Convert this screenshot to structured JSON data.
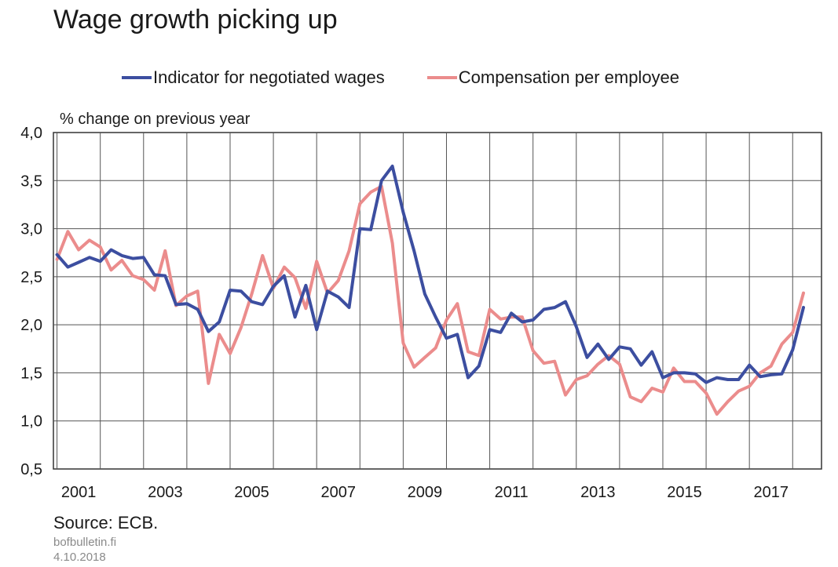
{
  "title": "Wage growth picking up",
  "source": "Source: ECB.",
  "site": "bofbulletin.fi",
  "date": "4.10.2018",
  "chart_data": {
    "type": "line",
    "title": "Wage growth picking up",
    "ylabel": "% change on previous year",
    "xlabel": "",
    "ylim": [
      0.5,
      4.0
    ],
    "yticks": [
      "0,5",
      "1,0",
      "1,5",
      "2,0",
      "2,5",
      "3,0",
      "3,5",
      "4,0"
    ],
    "ytick_values": [
      0.5,
      1.0,
      1.5,
      2.0,
      2.5,
      3.0,
      3.5,
      4.0
    ],
    "xticks": [
      "2001",
      "2003",
      "2005",
      "2007",
      "2009",
      "2011",
      "2013",
      "2015",
      "2017"
    ],
    "x_range": [
      "2000-12",
      "2018-09"
    ],
    "grid": true,
    "legend_position": "top",
    "series": [
      {
        "name": "Indicator for negotiated wages",
        "color": "#3c4ea0",
        "points": [
          [
            "2001-01",
            2.73
          ],
          [
            "2001-04",
            2.6
          ],
          [
            "2001-07",
            2.65
          ],
          [
            "2001-10",
            2.7
          ],
          [
            "2002-01",
            2.66
          ],
          [
            "2002-04",
            2.78
          ],
          [
            "2002-07",
            2.72
          ],
          [
            "2002-10",
            2.69
          ],
          [
            "2003-01",
            2.7
          ],
          [
            "2003-04",
            2.52
          ],
          [
            "2003-07",
            2.51
          ],
          [
            "2003-10",
            2.21
          ],
          [
            "2004-01",
            2.22
          ],
          [
            "2004-04",
            2.16
          ],
          [
            "2004-07",
            1.93
          ],
          [
            "2004-10",
            2.03
          ],
          [
            "2005-01",
            2.36
          ],
          [
            "2005-04",
            2.35
          ],
          [
            "2005-07",
            2.24
          ],
          [
            "2005-10",
            2.21
          ],
          [
            "2006-01",
            2.4
          ],
          [
            "2006-04",
            2.51
          ],
          [
            "2006-07",
            2.08
          ],
          [
            "2006-10",
            2.41
          ],
          [
            "2007-01",
            1.95
          ],
          [
            "2007-04",
            2.35
          ],
          [
            "2007-07",
            2.29
          ],
          [
            "2007-10",
            2.18
          ],
          [
            "2008-01",
            3.0
          ],
          [
            "2008-04",
            2.99
          ],
          [
            "2008-07",
            3.5
          ],
          [
            "2008-10",
            3.65
          ],
          [
            "2009-01",
            3.17
          ],
          [
            "2009-04",
            2.77
          ],
          [
            "2009-07",
            2.32
          ],
          [
            "2009-10",
            2.08
          ],
          [
            "2010-01",
            1.86
          ],
          [
            "2010-04",
            1.9
          ],
          [
            "2010-07",
            1.45
          ],
          [
            "2010-10",
            1.57
          ],
          [
            "2011-01",
            1.95
          ],
          [
            "2011-04",
            1.92
          ],
          [
            "2011-07",
            2.12
          ],
          [
            "2011-10",
            2.03
          ],
          [
            "2012-01",
            2.05
          ],
          [
            "2012-04",
            2.16
          ],
          [
            "2012-07",
            2.18
          ],
          [
            "2012-10",
            2.24
          ],
          [
            "2013-01",
            1.98
          ],
          [
            "2013-04",
            1.66
          ],
          [
            "2013-07",
            1.8
          ],
          [
            "2013-10",
            1.64
          ],
          [
            "2014-01",
            1.77
          ],
          [
            "2014-04",
            1.75
          ],
          [
            "2014-07",
            1.58
          ],
          [
            "2014-10",
            1.72
          ],
          [
            "2015-01",
            1.45
          ],
          [
            "2015-04",
            1.5
          ],
          [
            "2015-07",
            1.5
          ],
          [
            "2015-10",
            1.49
          ],
          [
            "2016-01",
            1.4
          ],
          [
            "2016-04",
            1.45
          ],
          [
            "2016-07",
            1.43
          ],
          [
            "2016-10",
            1.43
          ],
          [
            "2017-01",
            1.58
          ],
          [
            "2017-04",
            1.46
          ],
          [
            "2017-07",
            1.48
          ],
          [
            "2017-10",
            1.49
          ],
          [
            "2018-01",
            1.74
          ],
          [
            "2018-04",
            2.18
          ]
        ]
      },
      {
        "name": "Compensation per employee",
        "color": "#eb8c8c",
        "points": [
          [
            "2001-01",
            2.68
          ],
          [
            "2001-04",
            2.97
          ],
          [
            "2001-07",
            2.78
          ],
          [
            "2001-10",
            2.88
          ],
          [
            "2002-01",
            2.81
          ],
          [
            "2002-04",
            2.57
          ],
          [
            "2002-07",
            2.67
          ],
          [
            "2002-10",
            2.51
          ],
          [
            "2003-01",
            2.47
          ],
          [
            "2003-04",
            2.36
          ],
          [
            "2003-07",
            2.77
          ],
          [
            "2003-10",
            2.2
          ],
          [
            "2004-01",
            2.3
          ],
          [
            "2004-04",
            2.35
          ],
          [
            "2004-07",
            1.39
          ],
          [
            "2004-10",
            1.9
          ],
          [
            "2005-01",
            1.7
          ],
          [
            "2005-04",
            1.97
          ],
          [
            "2005-07",
            2.32
          ],
          [
            "2005-10",
            2.72
          ],
          [
            "2006-01",
            2.38
          ],
          [
            "2006-04",
            2.6
          ],
          [
            "2006-07",
            2.49
          ],
          [
            "2006-10",
            2.17
          ],
          [
            "2007-01",
            2.66
          ],
          [
            "2007-04",
            2.33
          ],
          [
            "2007-07",
            2.46
          ],
          [
            "2007-10",
            2.77
          ],
          [
            "2008-01",
            3.26
          ],
          [
            "2008-04",
            3.38
          ],
          [
            "2008-07",
            3.44
          ],
          [
            "2008-10",
            2.85
          ],
          [
            "2009-01",
            1.81
          ],
          [
            "2009-04",
            1.56
          ],
          [
            "2009-07",
            1.66
          ],
          [
            "2009-10",
            1.76
          ],
          [
            "2010-01",
            2.05
          ],
          [
            "2010-04",
            2.22
          ],
          [
            "2010-07",
            1.72
          ],
          [
            "2010-10",
            1.68
          ],
          [
            "2011-01",
            2.16
          ],
          [
            "2011-04",
            2.06
          ],
          [
            "2011-07",
            2.08
          ],
          [
            "2011-10",
            2.08
          ],
          [
            "2012-01",
            1.73
          ],
          [
            "2012-04",
            1.6
          ],
          [
            "2012-07",
            1.62
          ],
          [
            "2012-10",
            1.27
          ],
          [
            "2013-01",
            1.43
          ],
          [
            "2013-04",
            1.47
          ],
          [
            "2013-07",
            1.59
          ],
          [
            "2013-10",
            1.68
          ],
          [
            "2014-01",
            1.59
          ],
          [
            "2014-04",
            1.25
          ],
          [
            "2014-07",
            1.2
          ],
          [
            "2014-10",
            1.34
          ],
          [
            "2015-01",
            1.3
          ],
          [
            "2015-04",
            1.55
          ],
          [
            "2015-07",
            1.41
          ],
          [
            "2015-10",
            1.41
          ],
          [
            "2016-01",
            1.29
          ],
          [
            "2016-04",
            1.07
          ],
          [
            "2016-07",
            1.2
          ],
          [
            "2016-10",
            1.31
          ],
          [
            "2017-01",
            1.36
          ],
          [
            "2017-04",
            1.5
          ],
          [
            "2017-07",
            1.57
          ],
          [
            "2017-10",
            1.8
          ],
          [
            "2018-01",
            1.92
          ],
          [
            "2018-04",
            2.33
          ]
        ]
      }
    ]
  }
}
